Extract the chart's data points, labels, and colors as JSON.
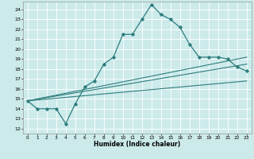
{
  "title": "",
  "xlabel": "Humidex (Indice chaleur)",
  "ylabel": "",
  "bg_color": "#cceaea",
  "grid_color": "#ffffff",
  "line_color": "#2e7d7d",
  "xlim": [
    -0.5,
    23.5
  ],
  "ylim": [
    11.5,
    24.8
  ],
  "xticks": [
    0,
    1,
    2,
    3,
    4,
    5,
    6,
    7,
    8,
    9,
    10,
    11,
    12,
    13,
    14,
    15,
    16,
    17,
    18,
    19,
    20,
    21,
    22,
    23
  ],
  "yticks": [
    12,
    13,
    14,
    15,
    16,
    17,
    18,
    19,
    20,
    21,
    22,
    23,
    24
  ],
  "curve1_x": [
    0,
    1,
    2,
    3,
    4,
    5,
    6,
    7,
    8,
    9,
    10,
    11,
    12,
    13,
    14,
    15,
    16,
    17,
    18,
    19,
    20,
    21,
    22,
    23
  ],
  "curve1_y": [
    14.8,
    14.0,
    14.0,
    14.0,
    12.5,
    14.5,
    16.2,
    16.8,
    18.5,
    19.2,
    21.5,
    21.5,
    23.0,
    24.5,
    23.5,
    23.0,
    22.2,
    20.5,
    19.2,
    19.2,
    19.2,
    19.0,
    18.2,
    17.8
  ],
  "curve2_x": [
    0,
    23
  ],
  "curve2_y": [
    14.8,
    16.8
  ],
  "curve3_x": [
    0,
    23
  ],
  "curve3_y": [
    14.8,
    18.5
  ],
  "curve4_x": [
    0,
    23
  ],
  "curve4_y": [
    14.8,
    19.2
  ]
}
